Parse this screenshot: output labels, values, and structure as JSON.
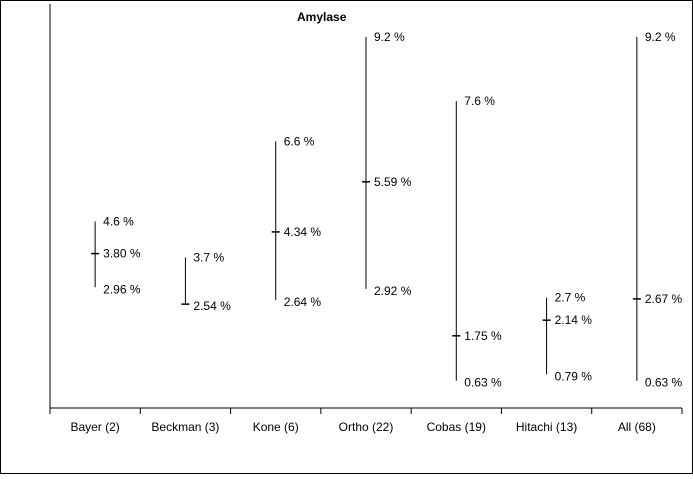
{
  "chart_data": {
    "type": "range",
    "title": "Amylase",
    "categories": [
      "Bayer (2)",
      "Beckman (3)",
      "Kone (6)",
      "Ortho (22)",
      "Cobas (19)",
      "Hitachi (13)",
      "All (68)"
    ],
    "series": [
      {
        "values_high": [
          4.6,
          3.7,
          6.6,
          9.2,
          7.6,
          2.7,
          9.2
        ]
      },
      {
        "values_mid": [
          3.8,
          2.54,
          4.34,
          5.59,
          1.75,
          2.14,
          2.67
        ]
      },
      {
        "values_low": [
          2.96,
          2.54,
          2.64,
          2.92,
          0.63,
          0.79,
          0.63
        ]
      }
    ],
    "labels": {
      "high": [
        "4.6 %",
        "3.7 %",
        "6.6 %",
        "9.2 %",
        "7.6 %",
        "2.7 %",
        "9.2 %"
      ],
      "mid": [
        "3.80 %",
        "2.54 %",
        "4.34 %",
        "5.59 %",
        "1.75 %",
        "2.14 %",
        "2.67 %"
      ],
      "low": [
        "2.96 %",
        "",
        "2.64 %",
        "2.92 %",
        "0.63 %",
        "0.79 %",
        "0.63 %"
      ]
    },
    "xlabel": "",
    "ylabel": "",
    "ylim": [
      -0.05,
      9.2
    ],
    "grid": false,
    "legend": "none"
  }
}
